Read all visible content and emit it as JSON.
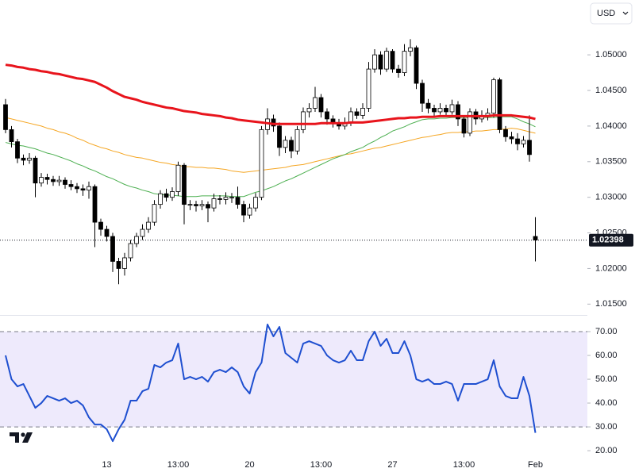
{
  "chart_data": {
    "type": "candlestick",
    "currency": "USD",
    "up_color": "#ffffff",
    "down_color": "#000000",
    "candle_border": "#000000",
    "categories": [
      null,
      null,
      null,
      null,
      null,
      null,
      null,
      null,
      null,
      null,
      null,
      null,
      null,
      null,
      null,
      null,
      null,
      "13",
      null,
      null,
      null,
      null,
      null,
      null,
      null,
      null,
      null,
      null,
      null,
      "13:00",
      null,
      null,
      null,
      null,
      null,
      null,
      null,
      null,
      null,
      null,
      null,
      "20",
      null,
      null,
      null,
      null,
      null,
      null,
      null,
      null,
      null,
      null,
      null,
      "13:00",
      null,
      null,
      null,
      null,
      null,
      null,
      null,
      null,
      null,
      null,
      null,
      "27",
      null,
      null,
      null,
      null,
      null,
      null,
      null,
      null,
      null,
      null,
      null,
      "13:00",
      null,
      null,
      null,
      null,
      null,
      null,
      null,
      null,
      null,
      null,
      null,
      "Feb"
    ],
    "open": [
      1.043,
      1.0395,
      1.0378,
      1.0355,
      1.0352,
      1.0355,
      1.032,
      1.0328,
      1.0325,
      1.0322,
      1.0324,
      1.0318,
      1.0315,
      1.0312,
      1.031,
      1.0315,
      1.0265,
      1.0255,
      1.0245,
      1.021,
      1.02,
      1.0215,
      1.0235,
      1.0245,
      1.0255,
      1.0265,
      1.029,
      1.0305,
      1.03,
      1.0308,
      1.0345,
      1.029,
      1.029,
      1.0288,
      1.029,
      1.0285,
      1.0298,
      1.0297,
      1.03,
      1.03,
      1.029,
      1.0275,
      1.0285,
      1.03,
      1.0395,
      1.041,
      1.04,
      1.037,
      1.038,
      1.0365,
      1.0395,
      1.042,
      1.0425,
      1.044,
      1.042,
      1.041,
      1.0405,
      1.04,
      1.0405,
      1.042,
      1.0415,
      1.0425,
      1.048,
      1.05,
      1.048,
      1.0505,
      1.048,
      1.0475,
      1.0505,
      1.051,
      1.046,
      1.0432,
      1.0425,
      1.042,
      1.0425,
      1.042,
      1.043,
      1.041,
      1.039,
      1.042,
      1.041,
      1.0415,
      1.0418,
      1.0465,
      1.0395,
      1.0385,
      1.0382,
      1.0375,
      1.038,
      1.0245
    ],
    "high": [
      1.0438,
      1.04,
      1.0382,
      1.036,
      1.0362,
      1.0358,
      1.0334,
      1.0333,
      1.033,
      1.033,
      1.0328,
      1.0324,
      1.032,
      1.0318,
      1.0322,
      1.0318,
      1.027,
      1.026,
      1.025,
      1.0215,
      1.0222,
      1.024,
      1.025,
      1.0262,
      1.0272,
      1.0296,
      1.031,
      1.0312,
      1.0314,
      1.035,
      1.0348,
      1.0296,
      1.0295,
      1.0296,
      1.0294,
      1.0305,
      1.0303,
      1.0307,
      1.0306,
      1.0315,
      1.0295,
      1.0291,
      1.0306,
      1.04,
      1.0425,
      1.0416,
      1.0405,
      1.0386,
      1.0385,
      1.04,
      1.0426,
      1.0432,
      1.0455,
      1.0445,
      1.0425,
      1.0415,
      1.041,
      1.0412,
      1.0426,
      1.0425,
      1.0432,
      1.049,
      1.0508,
      1.0505,
      1.051,
      1.0508,
      1.0486,
      1.0515,
      1.0522,
      1.0513,
      1.0465,
      1.0438,
      1.043,
      1.0432,
      1.043,
      1.0437,
      1.0435,
      1.0414,
      1.0425,
      1.0424,
      1.0422,
      1.0425,
      1.0468,
      1.0468,
      1.04,
      1.0392,
      1.039,
      1.0386,
      1.0415,
      1.0272
    ],
    "low": [
      1.039,
      1.037,
      1.0348,
      1.0345,
      1.0347,
      1.03,
      1.0315,
      1.0318,
      1.0316,
      1.0316,
      1.0312,
      1.031,
      1.0306,
      1.0302,
      1.0298,
      1.023,
      1.0246,
      1.0238,
      1.0195,
      1.0178,
      1.019,
      1.021,
      1.023,
      1.024,
      1.025,
      1.026,
      1.0284,
      1.0294,
      1.0295,
      1.0302,
      1.0262,
      1.0282,
      1.028,
      1.0282,
      1.0265,
      1.028,
      1.029,
      1.029,
      1.0292,
      1.0284,
      1.0265,
      1.027,
      1.028,
      1.0296,
      1.0388,
      1.0392,
      1.0358,
      1.0362,
      1.0355,
      1.036,
      1.039,
      1.0412,
      1.042,
      1.0412,
      1.0402,
      1.0398,
      1.0395,
      1.0395,
      1.04,
      1.041,
      1.041,
      1.042,
      1.0475,
      1.0472,
      1.0476,
      1.0475,
      1.0468,
      1.047,
      1.0498,
      1.0452,
      1.042,
      1.0418,
      1.0414,
      1.0416,
      1.0415,
      1.0416,
      1.04,
      1.0384,
      1.0386,
      1.0402,
      1.0405,
      1.0408,
      1.0412,
      1.039,
      1.0378,
      1.0375,
      1.0366,
      1.037,
      1.035,
      1.021
    ],
    "close": [
      1.0395,
      1.0378,
      1.0355,
      1.0352,
      1.0355,
      1.032,
      1.0328,
      1.0325,
      1.0322,
      1.0324,
      1.0318,
      1.0315,
      1.0312,
      1.031,
      1.0315,
      1.0265,
      1.0255,
      1.0245,
      1.021,
      1.02,
      1.0215,
      1.0235,
      1.0245,
      1.0255,
      1.0265,
      1.029,
      1.0305,
      1.03,
      1.0308,
      1.0345,
      1.029,
      1.029,
      1.0288,
      1.029,
      1.0285,
      1.0298,
      1.0297,
      1.03,
      1.03,
      1.029,
      1.0275,
      1.0285,
      1.03,
      1.0395,
      1.041,
      1.04,
      1.037,
      1.038,
      1.0365,
      1.0395,
      1.042,
      1.0425,
      1.044,
      1.042,
      1.041,
      1.0405,
      1.04,
      1.0405,
      1.042,
      1.0415,
      1.0425,
      1.048,
      1.05,
      1.048,
      1.0505,
      1.048,
      1.0475,
      1.0505,
      1.051,
      1.046,
      1.0432,
      1.0425,
      1.042,
      1.0425,
      1.042,
      1.043,
      1.041,
      1.039,
      1.042,
      1.041,
      1.0415,
      1.0418,
      1.0465,
      1.0395,
      1.0385,
      1.0382,
      1.0375,
      1.038,
      1.036,
      1.024
    ],
    "series": [
      {
        "color": "#e8141c",
        "width": 3,
        "values": [
          1.0486,
          1.0485,
          1.0483,
          1.0482,
          1.048,
          1.0479,
          1.0477,
          1.0476,
          1.0474,
          1.0473,
          1.0471,
          1.0469,
          1.0467,
          1.0466,
          1.0464,
          1.0462,
          1.0458,
          1.0454,
          1.0449,
          1.0445,
          1.0441,
          1.0439,
          1.0437,
          1.0434,
          1.0432,
          1.043,
          1.0428,
          1.0426,
          1.0425,
          1.0423,
          1.0421,
          1.042,
          1.0419,
          1.0417,
          1.0416,
          1.0415,
          1.0414,
          1.0412,
          1.0411,
          1.0409,
          1.0408,
          1.0407,
          1.0406,
          1.0405,
          1.0404,
          1.0403,
          1.0403,
          1.0403,
          1.0403,
          1.0403,
          1.0403,
          1.0403,
          1.0403,
          1.0404,
          1.0404,
          1.0404,
          1.0404,
          1.0404,
          1.0405,
          1.0405,
          1.0405,
          1.0406,
          1.0407,
          1.0408,
          1.0409,
          1.041,
          1.0411,
          1.0411,
          1.0412,
          1.0412,
          1.0413,
          1.0413,
          1.0413,
          1.0414,
          1.0414,
          1.0414,
          1.0414,
          1.0414,
          1.0414,
          1.0414,
          1.0414,
          1.0414,
          1.0415,
          1.0415,
          1.0415,
          1.0415,
          1.0414,
          1.0413,
          1.0412,
          1.041
        ]
      },
      {
        "color": "#f5a623",
        "width": 1,
        "values": [
          1.0412,
          1.041,
          1.0408,
          1.0406,
          1.0404,
          1.0402,
          1.04,
          1.0397,
          1.0395,
          1.0392,
          1.039,
          1.0387,
          1.0383,
          1.038,
          1.0376,
          1.0373,
          1.037,
          1.0368,
          1.0365,
          1.0363,
          1.036,
          1.0358,
          1.0356,
          1.0355,
          1.0353,
          1.0351,
          1.0349,
          1.0348,
          1.0346,
          1.0345,
          1.0343,
          1.0343,
          1.0342,
          1.0342,
          1.0341,
          1.0341,
          1.034,
          1.0339,
          1.0337,
          1.0336,
          1.0335,
          1.0336,
          1.0337,
          1.0338,
          1.0339,
          1.034,
          1.0341,
          1.0342,
          1.0344,
          1.0345,
          1.0346,
          1.0348,
          1.035,
          1.0352,
          1.0354,
          1.0356,
          1.0358,
          1.036,
          1.0361,
          1.0363,
          1.0365,
          1.0367,
          1.0369,
          1.037,
          1.0372,
          1.0374,
          1.0376,
          1.0378,
          1.038,
          1.0382,
          1.0384,
          1.0385,
          1.0387,
          1.0388,
          1.039,
          1.0391,
          1.0391,
          1.0392,
          1.0392,
          1.0393,
          1.0393,
          1.0394,
          1.0395,
          1.0395,
          1.0396,
          1.0397,
          1.0396,
          1.0394,
          1.0392,
          1.039
        ]
      },
      {
        "color": "#4caf50",
        "width": 1,
        "values": [
          1.0377,
          1.0375,
          1.0373,
          1.0372,
          1.037,
          1.0368,
          1.0365,
          1.0362,
          1.036,
          1.0357,
          1.0354,
          1.0351,
          1.0347,
          1.0344,
          1.034,
          1.0337,
          1.0333,
          1.0329,
          1.0326,
          1.0322,
          1.0318,
          1.0315,
          1.0313,
          1.031,
          1.0308,
          1.0305,
          1.0304,
          1.0303,
          1.0303,
          1.0302,
          1.0301,
          1.0301,
          1.0301,
          1.0302,
          1.0302,
          1.0302,
          1.0302,
          1.0302,
          1.0301,
          1.0301,
          1.0301,
          1.0304,
          1.0307,
          1.0309,
          1.0312,
          1.0315,
          1.0319,
          1.0323,
          1.0326,
          1.033,
          1.0334,
          1.0338,
          1.0342,
          1.0346,
          1.035,
          1.0354,
          1.0357,
          1.036,
          1.0364,
          1.0367,
          1.037,
          1.0375,
          1.0379,
          1.0384,
          1.0388,
          1.0393,
          1.0396,
          1.0399,
          1.0403,
          1.0406,
          1.0409,
          1.041,
          1.041,
          1.0411,
          1.0411,
          1.0412,
          1.0412,
          1.0412,
          1.0412,
          1.0412,
          1.0412,
          1.0412,
          1.0412,
          1.0413,
          1.0413,
          1.0413,
          1.041,
          1.0406,
          1.0403,
          1.0399
        ]
      }
    ],
    "current_price": 1.02398,
    "ylim": [
      1.0137,
      1.0577
    ],
    "yticks": [
      {
        "value": 1.015,
        "label": "1.01500"
      },
      {
        "value": 1.02,
        "label": "1.02000"
      },
      {
        "value": 1.025,
        "label": "1.02500"
      },
      {
        "value": 1.03,
        "label": "1.03000"
      },
      {
        "value": 1.035,
        "label": "1.03500"
      },
      {
        "value": 1.04,
        "label": "1.04000"
      },
      {
        "value": 1.045,
        "label": "1.04500"
      },
      {
        "value": 1.05,
        "label": "1.05000"
      }
    ],
    "indicator": {
      "type": "line",
      "series": [
        {
          "color": "#1e4fd0",
          "values": [
            60,
            50,
            47,
            48,
            43,
            38,
            40,
            43,
            42,
            41,
            42,
            40,
            41,
            39,
            34,
            31,
            31,
            29,
            24,
            29,
            33,
            41,
            41,
            45,
            46,
            56,
            55,
            57,
            58,
            65,
            50,
            51,
            50,
            51,
            49,
            53,
            54,
            53,
            55,
            53,
            47,
            44,
            53,
            57,
            73,
            68,
            72,
            61,
            59,
            57,
            65,
            66,
            65,
            64,
            60,
            58,
            57,
            58,
            62,
            58,
            58,
            66,
            70,
            64,
            67,
            61,
            61,
            66,
            60,
            50,
            49,
            50,
            48,
            48,
            49,
            48,
            41,
            48,
            48,
            48,
            49,
            50,
            58,
            47,
            43,
            42,
            42,
            51,
            43,
            27.5
          ]
        }
      ],
      "band": [
        30,
        70
      ],
      "band_color": "#eeeafc",
      "ylim": [
        17.7,
        76
      ],
      "yticks": [
        {
          "value": 20,
          "label": "20.00"
        },
        {
          "value": 30,
          "label": "30.00"
        },
        {
          "value": 40,
          "label": "40.00"
        },
        {
          "value": 50,
          "label": "50.00"
        },
        {
          "value": 60,
          "label": "60.00"
        },
        {
          "value": 70,
          "label": "70.00"
        }
      ]
    }
  }
}
